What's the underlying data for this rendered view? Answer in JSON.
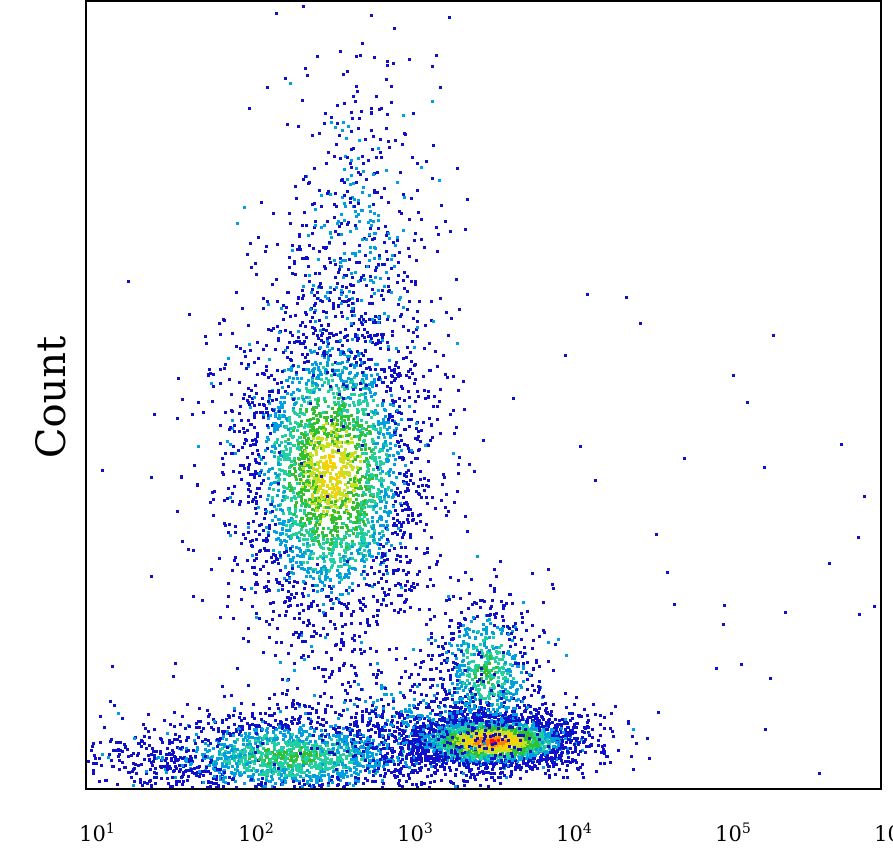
{
  "chart_data": {
    "type": "scatter",
    "title": "",
    "xlabel": "",
    "ylabel": "Count",
    "x_scale": "log",
    "xlim": [
      10,
      1000000
    ],
    "x_ticks": [
      {
        "value": 10,
        "base": "10",
        "exp": "1"
      },
      {
        "value": 100,
        "base": "10",
        "exp": "2"
      },
      {
        "value": 1000,
        "base": "10",
        "exp": "3"
      },
      {
        "value": 10000,
        "base": "10",
        "exp": "4"
      },
      {
        "value": 100000,
        "base": "10",
        "exp": "5"
      },
      {
        "value": 1000000,
        "base": "10",
        "exp": "6"
      }
    ],
    "y_ticks": [],
    "grid": false,
    "legend": "none",
    "density_colormap": [
      "#1010c8",
      "#00a0e0",
      "#20d0a0",
      "#30c030",
      "#c8e020",
      "#ffd000",
      "#ff8000",
      "#ff1010"
    ],
    "populations": [
      {
        "center_x": 300,
        "center_y_frac": 0.62,
        "density": "medium-high",
        "peak_color": "#c8e020"
      },
      {
        "center_x": 3500,
        "center_y_frac": 0.06,
        "density": "highest",
        "peak_color": "#ff1010"
      },
      {
        "center_x": 3000,
        "center_y_frac": 0.15,
        "density": "medium",
        "peak_color": "#30c030"
      },
      {
        "center_x": 150,
        "center_y_frac": 0.04,
        "density": "medium",
        "peak_color": "#30c030"
      }
    ]
  }
}
